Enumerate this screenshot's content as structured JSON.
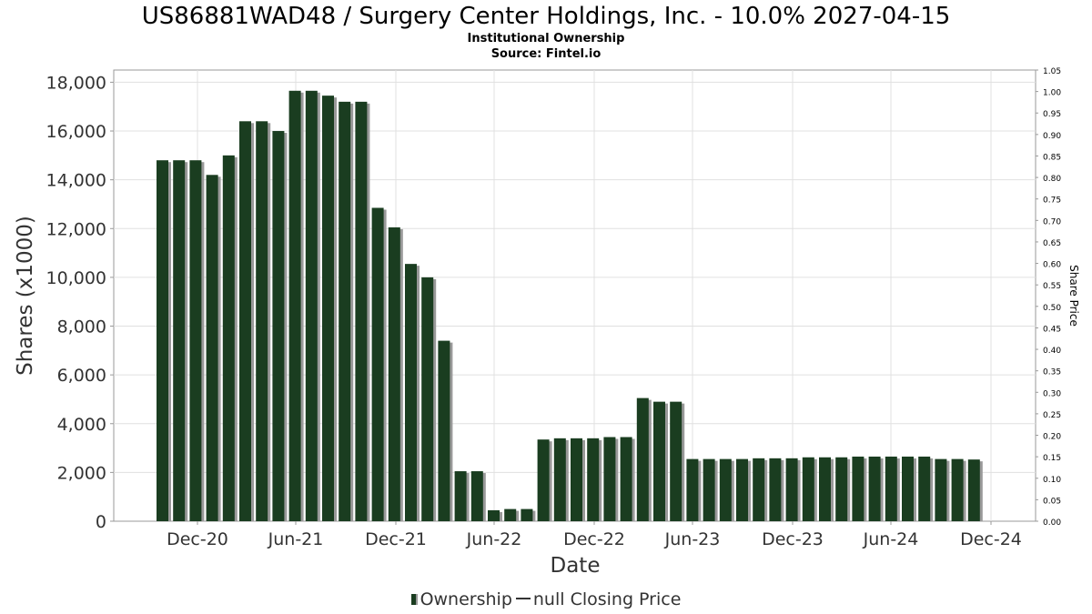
{
  "chart_data": {
    "type": "bar",
    "title": "US86881WAD48 / Surgery Center Holdings, Inc. - 10.0% 2027-04-15",
    "subtitles": [
      "Institutional Ownership",
      "Source: Fintel.io"
    ],
    "xlabel": "Date",
    "ylabel": "Shares (x1000)",
    "ylabel_right": "Share Price",
    "ylim": [
      0,
      18500
    ],
    "ylim_right": [
      0,
      1.05
    ],
    "yticks": [
      "0",
      "2,000",
      "4,000",
      "6,000",
      "8,000",
      "10,000",
      "12,000",
      "14,000",
      "16,000",
      "18,000"
    ],
    "yticks_right": [
      "0.00",
      "0.05",
      "0.10",
      "0.15",
      "0.20",
      "0.25",
      "0.30",
      "0.35",
      "0.40",
      "0.45",
      "0.50",
      "0.55",
      "0.60",
      "0.65",
      "0.70",
      "0.75",
      "0.80",
      "0.85",
      "0.90",
      "0.95",
      "1.00",
      "1.05"
    ],
    "xticks": [
      "Dec-20",
      "Jun-21",
      "Dec-21",
      "Jun-22",
      "Dec-22",
      "Jun-23",
      "Dec-23",
      "Jun-24",
      "Dec-24"
    ],
    "grid": true,
    "legend_position": "bottom",
    "legend": [
      "Ownership",
      "null Closing Price"
    ],
    "colors": {
      "bar": "#1a3d20",
      "bar_shadow": "#999999",
      "grid": "#e0e0e0"
    },
    "series": [
      {
        "name": "Ownership",
        "values": [
          14800,
          14800,
          14800,
          14200,
          15000,
          16400,
          16400,
          16000,
          17650,
          17650,
          17450,
          17200,
          17200,
          12850,
          12050,
          10550,
          10000,
          7400,
          2050,
          2050,
          450,
          500,
          500,
          3350,
          3400,
          3400,
          3400,
          3450,
          3450,
          5050,
          4900,
          4900,
          2550,
          2550,
          2550,
          2550,
          2580,
          2580,
          2580,
          2620,
          2620,
          2620,
          2650,
          2650,
          2650,
          2650,
          2650,
          2550,
          2550,
          2530
        ]
      }
    ]
  }
}
